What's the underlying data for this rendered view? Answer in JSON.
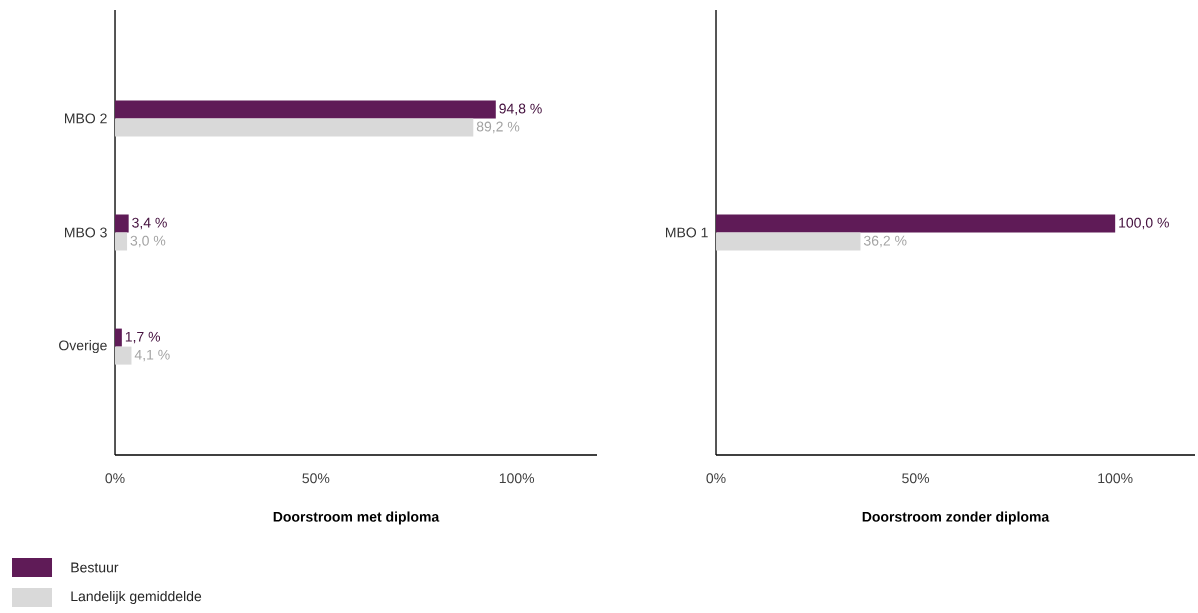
{
  "chart_data": [
    {
      "type": "bar",
      "orientation": "horizontal",
      "xlabel": "Doorstroom met diploma",
      "categories": [
        "MBO 2",
        "MBO 3",
        "Overige"
      ],
      "series": [
        {
          "name": "Bestuur",
          "color": "#5f1b57",
          "values": [
            94.8,
            3.4,
            1.7
          ],
          "value_labels": [
            "94,8 %",
            "3,4 %",
            "1,7 %"
          ]
        },
        {
          "name": "Landelijk gemiddelde",
          "color": "#d9d9d9",
          "values": [
            89.2,
            3.0,
            4.1
          ],
          "value_labels": [
            "89,2 %",
            "3,0 %",
            "4,1 %"
          ]
        }
      ],
      "xlim": [
        0,
        120
      ],
      "xticks": [
        {
          "value": 0,
          "label": "0%"
        },
        {
          "value": 50,
          "label": "50%"
        },
        {
          "value": 100,
          "label": "100%"
        }
      ],
      "legend": "bottom left"
    },
    {
      "type": "bar",
      "orientation": "horizontal",
      "xlabel": "Doorstroom zonder diploma",
      "categories": [
        "MBO 1"
      ],
      "series": [
        {
          "color": "#5f1b57",
          "values": [
            100.0
          ],
          "value_labels": [
            "100,0 %"
          ]
        },
        {
          "color": "#d9d9d9",
          "values": [
            36.2
          ],
          "value_labels": [
            "36,2 %"
          ]
        }
      ],
      "xlim": [
        0,
        120
      ],
      "xticks": [
        {
          "value": 0,
          "label": "0%"
        },
        {
          "value": 50,
          "label": "50%"
        },
        {
          "value": 100,
          "label": "100%"
        }
      ]
    }
  ]
}
